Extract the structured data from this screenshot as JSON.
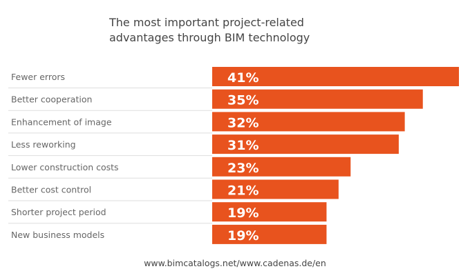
{
  "chart_data": {
    "type": "bar",
    "orientation": "horizontal",
    "title_lines": [
      "The most important project-related",
      "advantages through BIM technology"
    ],
    "categories": [
      "Fewer errors",
      "Better cooperation",
      "Enhancement of image",
      "Less reworking",
      "Lower construction costs",
      "Better cost control",
      "Shorter project period",
      "New business models"
    ],
    "values": [
      41,
      35,
      32,
      31,
      23,
      21,
      19,
      19
    ],
    "value_labels": [
      "41%",
      "35%",
      "32%",
      "31%",
      "23%",
      "21%",
      "19%",
      "19%"
    ],
    "unit": "%",
    "bar_color": "#e8531e",
    "grid": false,
    "legend": "none"
  },
  "source": "www.bimcatalogs.net/www.cadenas.de/en"
}
